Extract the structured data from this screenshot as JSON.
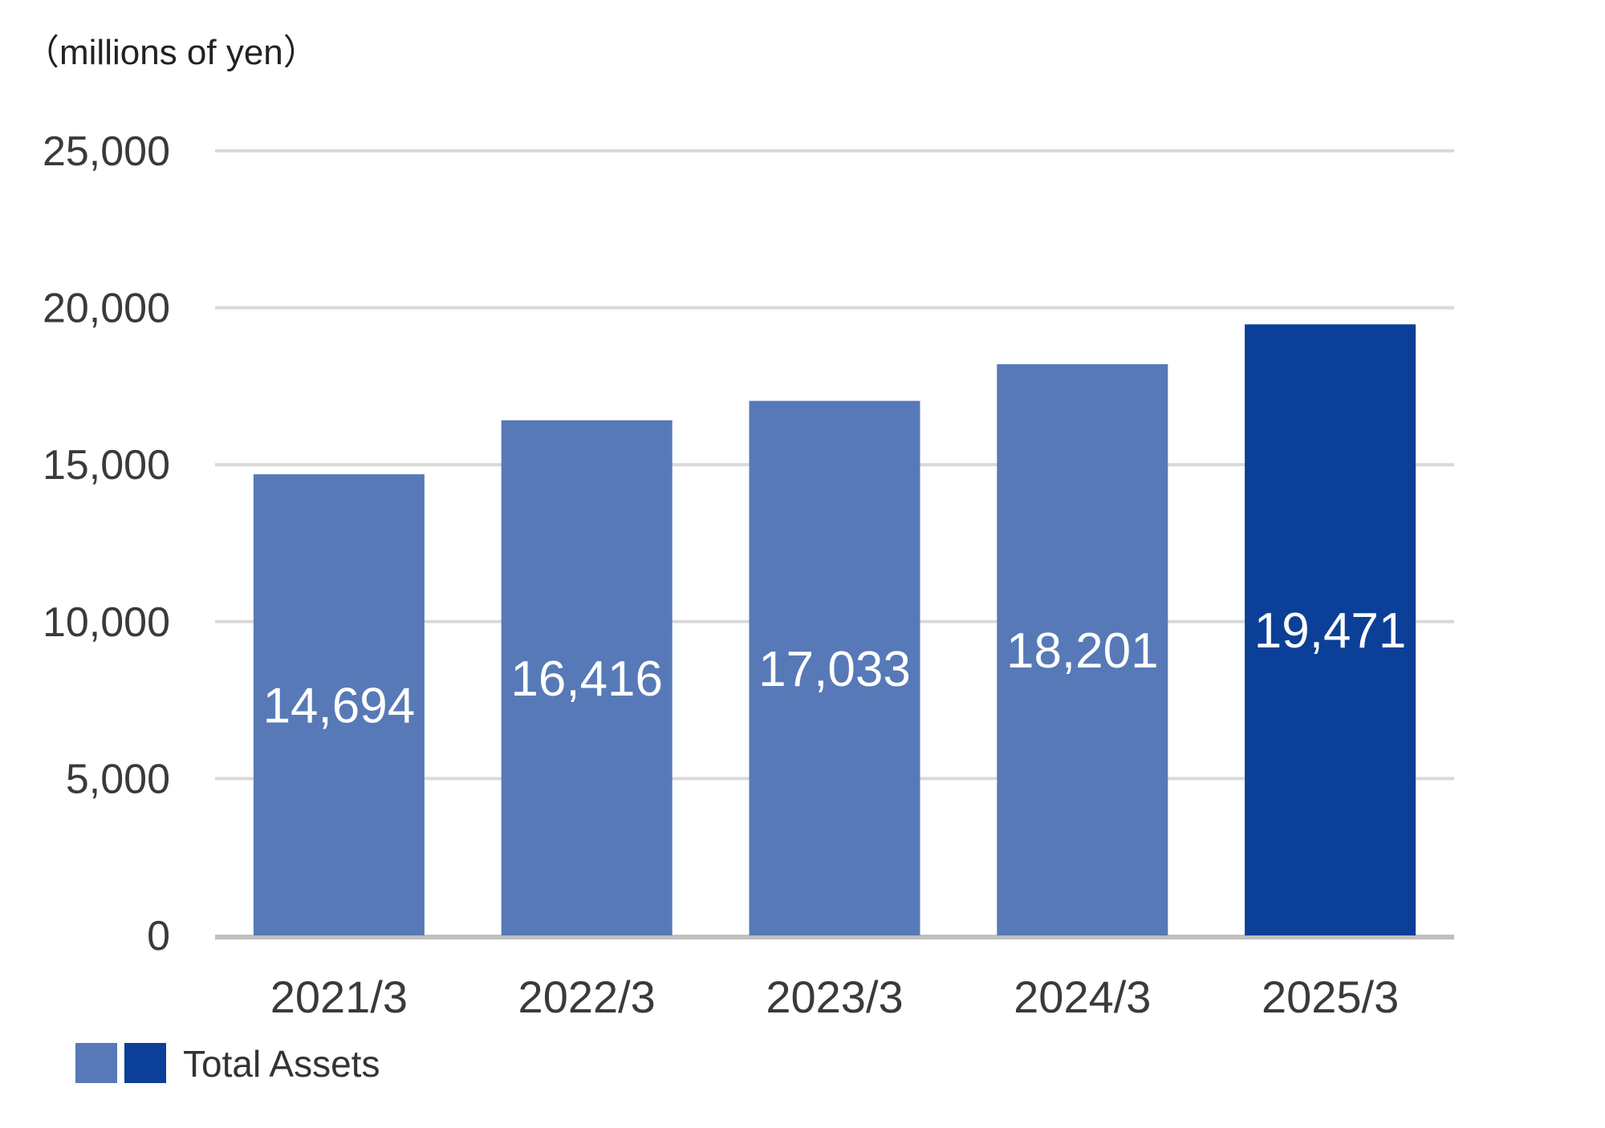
{
  "chart_data": {
    "type": "bar",
    "unit_label": "（millions of yen）",
    "categories": [
      "2021/3",
      "2022/3",
      "2023/3",
      "2024/3",
      "2025/3"
    ],
    "series": [
      {
        "name": "Total Assets",
        "values": [
          14694,
          16416,
          17033,
          18201,
          19471
        ],
        "data_labels": [
          "14,694",
          "16,416",
          "17,033",
          "18,201",
          "19,471"
        ]
      }
    ],
    "ylim": [
      0,
      25000
    ],
    "yticks": [
      0,
      5000,
      10000,
      15000,
      20000,
      25000
    ],
    "ytick_labels": [
      "0",
      "5,000",
      "10,000",
      "15,000",
      "20,000",
      "25,000"
    ],
    "grid": true,
    "legend_position": "bottom-left",
    "colors": {
      "bar": "#5779b7",
      "highlight_bar": "#0c3f97",
      "gridline": "#d9d9d9",
      "axis": "#bfbfbf"
    },
    "highlight_index": 4
  }
}
